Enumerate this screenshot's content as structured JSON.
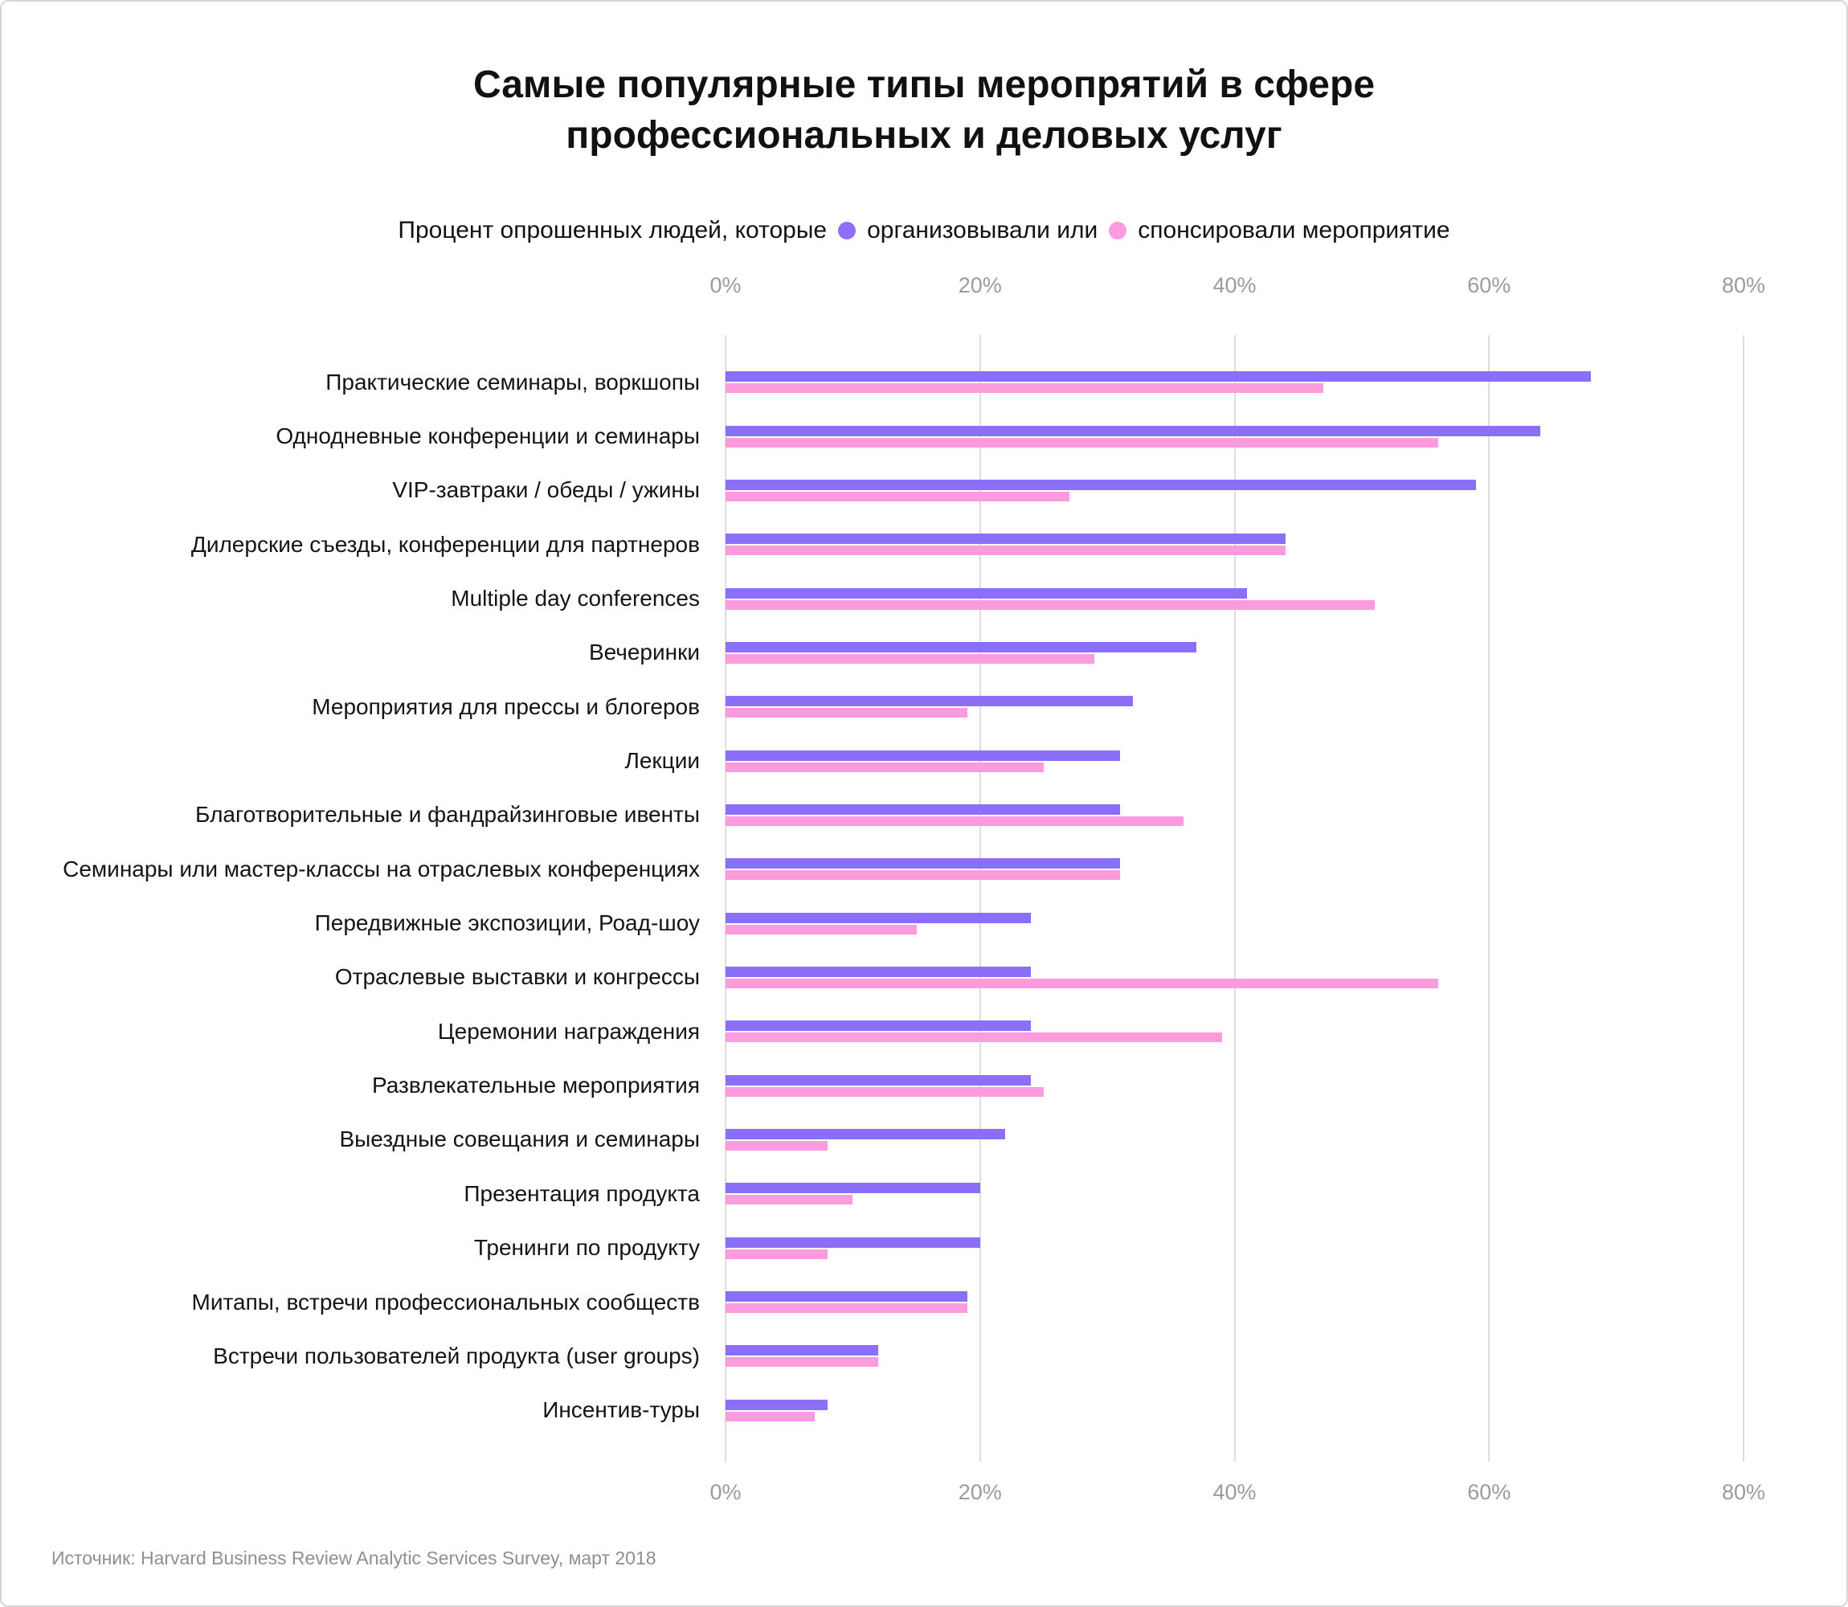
{
  "title_lines": [
    "Самые популярные типы меропрятий в сфере",
    "профессиональных и деловых услуг"
  ],
  "legend": {
    "prefix": "Процент опрошенных людей, которые",
    "series1_label": "организовывали или",
    "series2_label": "спонсировали мероприятие"
  },
  "source": "Источник: Harvard Business Review Analytic Services Survey, март 2018",
  "colors": {
    "organized": "#8B6FF8",
    "sponsored": "#FC9CDE",
    "gridline": "#DEDEDE",
    "tick_text": "#9B9B9B"
  },
  "chart_data": {
    "type": "bar",
    "orientation": "horizontal",
    "title": "Самые популярные типы меропрятий в сфере профессиональных и деловых услуг",
    "subtitle": "Процент опрошенных людей, которые организовывали или спонсировали мероприятие",
    "x_ticks": [
      "0%",
      "20%",
      "40%",
      "60%",
      "80%"
    ],
    "x_range": [
      0,
      80
    ],
    "grid": true,
    "categories": [
      "Практические семинары, воркшопы",
      "Однодневные конференции и семинары",
      "VIP-завтраки / обеды / ужины",
      "Дилерские съезды, конференции для партнеров",
      "Multiple day conferences",
      "Вечеринки",
      "Мероприятия для прессы и блогеров",
      "Лекции",
      "Благотворительные и фандрайзинговые ивенты",
      "Семинары или мастер-классы на отраслевых конференциях",
      "Передвижные экспозиции, Роад-шоу",
      "Отраслевые выставки и конгрессы",
      "Церемонии награждения",
      "Развлекательные мероприятия",
      "Выездные совещания и семинары",
      "Презентация продукта",
      "Тренинги по продукту",
      "Митапы, встречи профессиональных сообществ",
      "Встречи пользователей продукта (user groups)",
      "Инсентив-туры"
    ],
    "series": [
      {
        "name": "организовывали",
        "color": "#8B6FF8",
        "values": [
          68,
          64,
          59,
          44,
          41,
          37,
          32,
          31,
          31,
          31,
          24,
          24,
          24,
          24,
          22,
          20,
          20,
          19,
          12,
          8
        ]
      },
      {
        "name": "спонсировали",
        "color": "#FC9CDE",
        "values": [
          47,
          56,
          27,
          44,
          51,
          29,
          19,
          25,
          36,
          31,
          15,
          56,
          39,
          25,
          8,
          10,
          8,
          19,
          12,
          7
        ]
      }
    ]
  }
}
